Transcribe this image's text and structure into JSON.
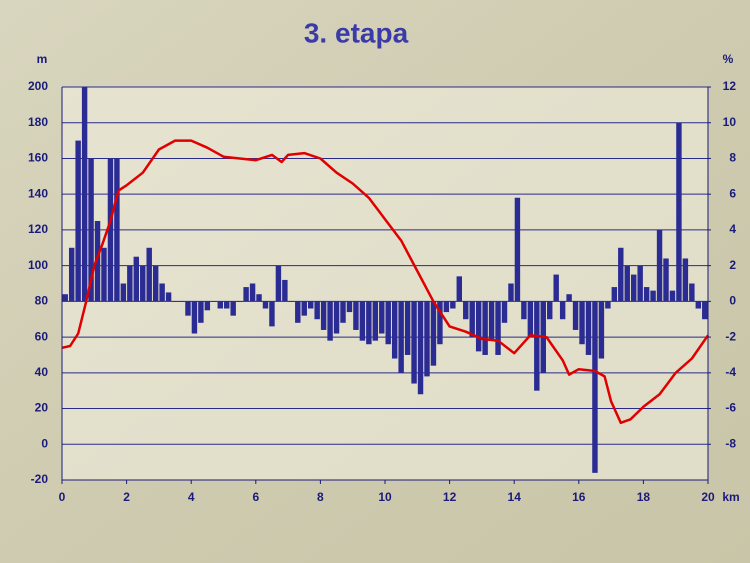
{
  "chart_data": {
    "type": "combo",
    "title": "3. etapa",
    "ylabel": "m",
    "y2label": "%",
    "xlabel": "km",
    "xlim": [
      0,
      20
    ],
    "xticks": [
      0,
      2,
      4,
      6,
      8,
      10,
      12,
      14,
      16,
      18,
      20
    ],
    "ylim": [
      -20,
      200
    ],
    "yticks": [
      -20,
      0,
      20,
      40,
      60,
      80,
      100,
      120,
      140,
      160,
      180,
      200
    ],
    "y2lim": [
      -10,
      12
    ],
    "y2ticks": [
      -8,
      -6,
      -4,
      -2,
      0,
      2,
      4,
      6,
      8,
      10,
      12
    ],
    "grid": true,
    "bars": {
      "axis": "y2",
      "color": "#2b2b94",
      "x": [
        0.1,
        0.3,
        0.5,
        0.7,
        0.9,
        1.1,
        1.3,
        1.5,
        1.7,
        1.9,
        2.1,
        2.3,
        2.5,
        2.7,
        2.9,
        3.1,
        3.3,
        3.5,
        3.7,
        3.9,
        4.1,
        4.3,
        4.5,
        4.7,
        4.9,
        5.1,
        5.3,
        5.5,
        5.7,
        5.9,
        6.1,
        6.3,
        6.5,
        6.7,
        6.9,
        7.1,
        7.3,
        7.5,
        7.7,
        7.9,
        8.1,
        8.3,
        8.5,
        8.7,
        8.9,
        9.1,
        9.3,
        9.5,
        9.7,
        9.9,
        10.1,
        10.3,
        10.5,
        10.7,
        10.9,
        11.1,
        11.3,
        11.5,
        11.7,
        11.9,
        12.1,
        12.3,
        12.5,
        12.7,
        12.9,
        13.1,
        13.3,
        13.5,
        13.7,
        13.9,
        14.1,
        14.3,
        14.5,
        14.7,
        14.9,
        15.1,
        15.3,
        15.5,
        15.7,
        15.9,
        16.1,
        16.3,
        16.5,
        16.7,
        16.9,
        17.1,
        17.3,
        17.5,
        17.7,
        17.9,
        18.1,
        18.3,
        18.5,
        18.7,
        18.9,
        19.1,
        19.3,
        19.5,
        19.7,
        19.9
      ],
      "values": [
        0.4,
        3,
        9,
        12,
        8,
        4.5,
        3,
        8,
        8,
        1,
        2,
        2.5,
        2,
        3,
        2,
        1,
        0.5,
        0,
        0,
        -0.8,
        -1.8,
        -1.2,
        -0.5,
        0,
        -0.4,
        -0.4,
        -0.8,
        0,
        0.8,
        1,
        0.4,
        -0.4,
        -1.4,
        2,
        1.2,
        0,
        -1.2,
        -0.8,
        -0.4,
        -1,
        -1.6,
        -2.2,
        -1.8,
        -1.2,
        -0.6,
        -1.6,
        -2.2,
        -2.4,
        -2.2,
        -1.8,
        -2.4,
        -3.2,
        -4,
        -3,
        -4.6,
        -5.2,
        -4.2,
        -3.6,
        -2.4,
        -0.6,
        -0.4,
        1.4,
        -1,
        -2,
        -2.8,
        -3,
        -2.2,
        -3,
        -1.2,
        1,
        5.8,
        -1,
        -2,
        -5,
        -4,
        -1,
        1.5,
        -1,
        0.4,
        -1.6,
        -2.4,
        -3,
        -9.6,
        -3.2,
        -0.4,
        0.8,
        3,
        2,
        1.5,
        2,
        0.8,
        0.6,
        4,
        2.4,
        0.6,
        10,
        2.4,
        1,
        -0.4,
        -1
      ]
    },
    "line": {
      "color": "#e00000",
      "x": [
        0,
        0.25,
        0.5,
        0.75,
        1,
        1.25,
        1.5,
        1.75,
        2,
        2.5,
        3,
        3.5,
        4,
        4.5,
        5,
        5.5,
        6,
        6.5,
        6.8,
        7,
        7.5,
        8,
        8.5,
        9,
        9.5,
        10,
        10.5,
        11,
        11.5,
        12,
        12.5,
        13,
        13.5,
        14,
        14.5,
        15,
        15.5,
        15.7,
        16,
        16.5,
        16.8,
        17,
        17.3,
        17.6,
        18,
        18.5,
        19,
        19.5,
        20
      ],
      "values": [
        54,
        55,
        62,
        80,
        100,
        112,
        125,
        142,
        145,
        152,
        165,
        170,
        170,
        166,
        161,
        160,
        159,
        162,
        158,
        162,
        163,
        160,
        152,
        146,
        138,
        126,
        114,
        97,
        80,
        66,
        63,
        59,
        58,
        51,
        61,
        60,
        47,
        39,
        42,
        41,
        38,
        24,
        12,
        14,
        21,
        28,
        40,
        48,
        61
      ]
    }
  }
}
